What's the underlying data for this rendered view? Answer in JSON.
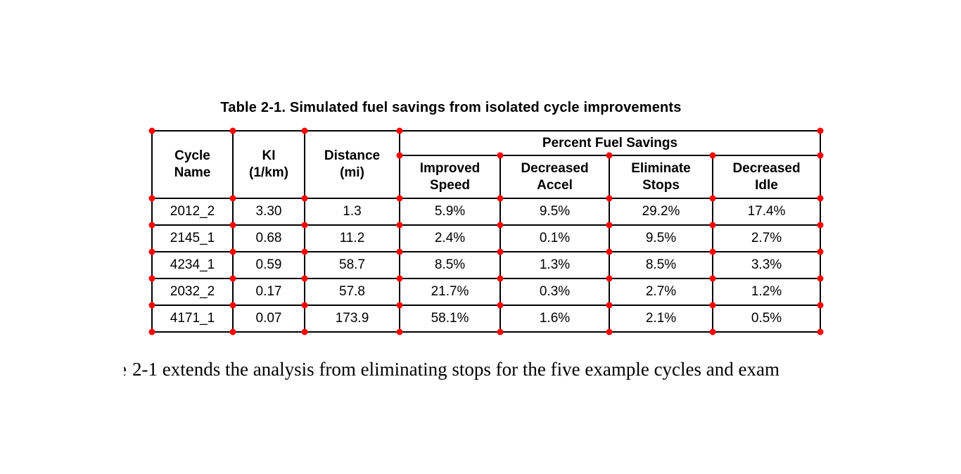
{
  "caption": "Table 2-1. Simulated fuel savings from isolated cycle improvements",
  "table": {
    "col_headers": [
      "Cycle\nName",
      "KI\n(1/km)",
      "Distance\n(mi)"
    ],
    "group_header": "Percent Fuel Savings",
    "sub_headers": [
      "Improved\nSpeed",
      "Decreased\nAccel",
      "Eliminate\nStops",
      "Decreased\nIdle"
    ],
    "rows": [
      [
        "2012_2",
        "3.30",
        "1.3",
        "5.9%",
        "9.5%",
        "29.2%",
        "17.4%"
      ],
      [
        "2145_1",
        "0.68",
        "11.2",
        "2.4%",
        "0.1%",
        "9.5%",
        "2.7%"
      ],
      [
        "4234_1",
        "0.59",
        "58.7",
        "8.5%",
        "1.3%",
        "8.5%",
        "3.3%"
      ],
      [
        "2032_2",
        "0.17",
        "57.8",
        "21.7%",
        "0.3%",
        "2.7%",
        "1.2%"
      ],
      [
        "4171_1",
        "0.07",
        "173.9",
        "58.1%",
        "1.6%",
        "2.1%",
        "0.5%"
      ]
    ]
  },
  "chart_data": {
    "type": "table",
    "title": "Table 2-1. Simulated fuel savings from isolated cycle improvements",
    "columns": [
      "Cycle Name",
      "KI (1/km)",
      "Distance (mi)",
      "Improved Speed",
      "Decreased Accel",
      "Eliminate Stops",
      "Decreased Idle"
    ],
    "group_header": "Percent Fuel Savings",
    "rows": [
      [
        "2012_2",
        3.3,
        1.3,
        "5.9%",
        "9.5%",
        "29.2%",
        "17.4%"
      ],
      [
        "2145_1",
        0.68,
        11.2,
        "2.4%",
        "0.1%",
        "9.5%",
        "2.7%"
      ],
      [
        "4234_1",
        0.59,
        58.7,
        "8.5%",
        "1.3%",
        "8.5%",
        "3.3%"
      ],
      [
        "2032_2",
        0.17,
        57.8,
        "21.7%",
        "0.3%",
        "2.7%",
        "1.2%"
      ],
      [
        "4171_1",
        0.07,
        173.9,
        "58.1%",
        "1.6%",
        "2.1%",
        "0.5%"
      ]
    ]
  },
  "body_text": {
    "clipped_fragment": "e",
    "text": "2-1 extends the analysis from eliminating stops for the five example cycles and exam"
  },
  "annotations": {
    "dot_color": "#ff0000"
  }
}
